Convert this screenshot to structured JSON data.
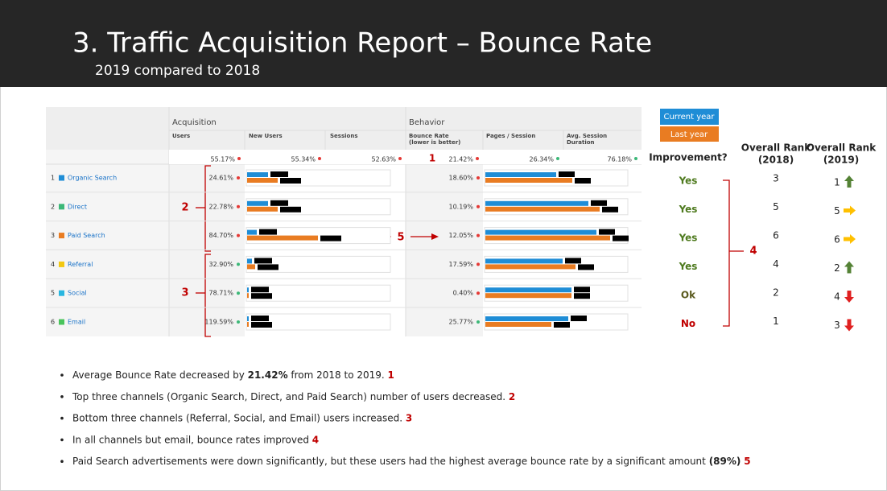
{
  "header": {
    "title": "3. Traffic Acquisition Report – Bounce Rate",
    "subtitle": "2019 compared to 2018"
  },
  "table": {
    "groups": [
      "Acquisition",
      "Behavior"
    ],
    "columns": [
      [
        "Users"
      ],
      [
        "New Users"
      ],
      [
        "Sessions"
      ],
      [
        "Bounce Rate",
        "(lower is better)"
      ],
      [
        "Pages / Session"
      ],
      [
        "Avg. Session",
        "Duration"
      ]
    ],
    "totals": [
      "55.17%",
      "55.34%",
      "52.63%",
      "21.42%",
      "26.34%",
      "76.18%"
    ],
    "totals_marker": "1",
    "rows": [
      {
        "rank": "1",
        "channel": "Organic Search",
        "color": "#1f8dd6",
        "users": "24.61%",
        "bounce_rate": "18.60%"
      },
      {
        "rank": "2",
        "channel": "Direct",
        "color": "#3cb878",
        "users": "22.78%",
        "bounce_rate": "10.19%"
      },
      {
        "rank": "3",
        "channel": "Paid Search",
        "color": "#e97c22",
        "users": "84.70%",
        "bounce_rate": "12.05%"
      },
      {
        "rank": "4",
        "channel": "Referral",
        "color": "#f2c811",
        "users": "32.90%",
        "bounce_rate": "17.59%"
      },
      {
        "rank": "5",
        "channel": "Social",
        "color": "#29b6e0",
        "users": "78.71%",
        "bounce_rate": "0.40%"
      },
      {
        "rank": "6",
        "channel": "Email",
        "color": "#49c45c",
        "users": "119.59%",
        "bounce_rate": "25.77%"
      }
    ]
  },
  "annotations": {
    "top_group": "2",
    "bottom_group": "3",
    "paid_search": "5",
    "bounce_group": "4"
  },
  "legend": [
    "Current year",
    "Last year"
  ],
  "right": {
    "headers": [
      "Improvement?",
      [
        "Overall Rank",
        "(2018)"
      ],
      [
        "Overall Rank",
        "(2019)"
      ]
    ],
    "rows": [
      {
        "improvement": "Yes",
        "color": "#4e7a1e",
        "rank_2018": "3",
        "rank_2019": "1"
      },
      {
        "improvement": "Yes",
        "color": "#4e7a1e",
        "rank_2018": "5",
        "rank_2019": "5"
      },
      {
        "improvement": "Yes",
        "color": "#4e7a1e",
        "rank_2018": "6",
        "rank_2019": "6"
      },
      {
        "improvement": "Yes",
        "color": "#4e7a1e",
        "rank_2018": "4",
        "rank_2019": "2"
      },
      {
        "improvement": "Ok",
        "color": "#5a5a1e",
        "rank_2018": "2",
        "rank_2019": "4"
      },
      {
        "improvement": "No",
        "color": "#c00000",
        "rank_2018": "1",
        "rank_2019": "3"
      }
    ]
  },
  "bullets": [
    [
      {
        "text": "Average Bounce Rate decreased by "
      },
      {
        "text": "21.42%",
        "bold": true
      },
      {
        "text": " from 2018 to 2019. "
      },
      {
        "text": "1",
        "ref": true
      }
    ],
    [
      {
        "text": "Top three channels (Organic Search, Direct, and Paid Search) number of users decreased. "
      },
      {
        "text": "2",
        "ref": true
      }
    ],
    [
      {
        "text": "Bottom three channels (Referral, Social, and Email) users increased. "
      },
      {
        "text": "3",
        "ref": true
      }
    ],
    [
      {
        "text": "In all channels but email, bounce rates improved "
      },
      {
        "text": "4",
        "ref": true
      }
    ],
    [
      {
        "text": "Paid Search advertisements were down significantly, but these users had the highest average bounce rate by a significant amount "
      },
      {
        "text": "(89%)",
        "bold": true
      },
      {
        "text": " "
      },
      {
        "text": "5",
        "ref": true
      }
    ]
  ]
}
